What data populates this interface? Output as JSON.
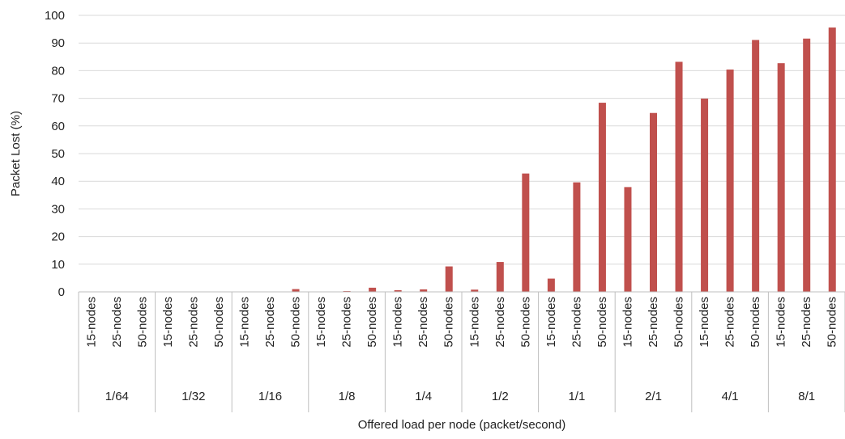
{
  "chart_data": {
    "type": "bar",
    "title": "",
    "xlabel": "Offered load per node (packet/second)",
    "ylabel": "Packet Lost (%)",
    "ylim": [
      0,
      100
    ],
    "yticks": [
      "0",
      "10",
      "20",
      "30",
      "40",
      "50",
      "60",
      "70",
      "80",
      "90",
      "100"
    ],
    "grid": true,
    "legend": "none",
    "bar_color": "#c0504d",
    "gridline_color": "#d9d9d9",
    "groups": [
      "1/64",
      "1/32",
      "1/16",
      "1/8",
      "1/4",
      "1/2",
      "1/1",
      "2/1",
      "4/1",
      "8/1"
    ],
    "subcategories": [
      "15-nodes",
      "25-nodes",
      "50-nodes"
    ],
    "values": [
      [
        0,
        0,
        0
      ],
      [
        0,
        0,
        0
      ],
      [
        0,
        0,
        1
      ],
      [
        0,
        0.3,
        1.5
      ],
      [
        0.6,
        0.9,
        9.2
      ],
      [
        0.8,
        10.8,
        42.8
      ],
      [
        4.8,
        39.6,
        68.4
      ],
      [
        37.9,
        64.7,
        83.2
      ],
      [
        69.9,
        80.4,
        91.1
      ],
      [
        82.7,
        91.6,
        95.6
      ]
    ]
  }
}
